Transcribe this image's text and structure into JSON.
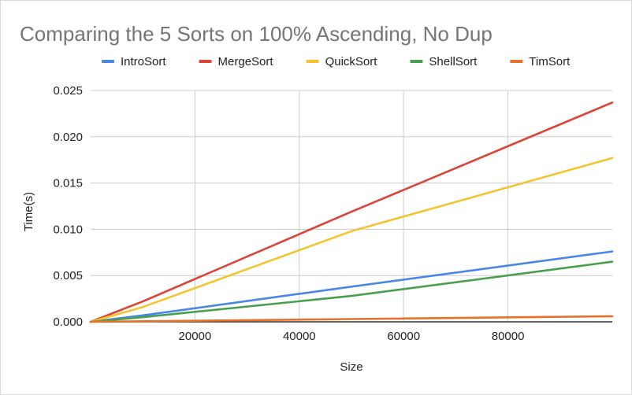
{
  "chart_data": {
    "type": "line",
    "title": "Comparing the 5 Sorts on 100% Ascending, No Dup",
    "xlabel": "Size",
    "ylabel": "Time(s)",
    "xlim": [
      0,
      100000
    ],
    "ylim": [
      0,
      0.025
    ],
    "x_ticks": [
      "20000",
      "40000",
      "60000",
      "80000"
    ],
    "y_ticks": [
      "0.000",
      "0.005",
      "0.010",
      "0.015",
      "0.020",
      "0.025"
    ],
    "grid": true,
    "legend_position": "top",
    "x": [
      0,
      10000,
      50000,
      100000
    ],
    "series": [
      {
        "name": "IntroSort",
        "color": "#4a86e8",
        "values": [
          0,
          0.0007,
          0.0038,
          0.0076
        ]
      },
      {
        "name": "MergeSort",
        "color": "#db4437",
        "values": [
          0,
          0.0022,
          0.0119,
          0.0237
        ]
      },
      {
        "name": "QuickSort",
        "color": "#f4c430",
        "values": [
          0,
          0.0016,
          0.0098,
          0.0177
        ]
      },
      {
        "name": "ShellSort",
        "color": "#4a9e4f",
        "values": [
          0,
          0.0005,
          0.0028,
          0.0065
        ]
      },
      {
        "name": "TimSort",
        "color": "#e8712a",
        "values": [
          0,
          6e-05,
          0.0003,
          0.0006
        ]
      }
    ]
  }
}
